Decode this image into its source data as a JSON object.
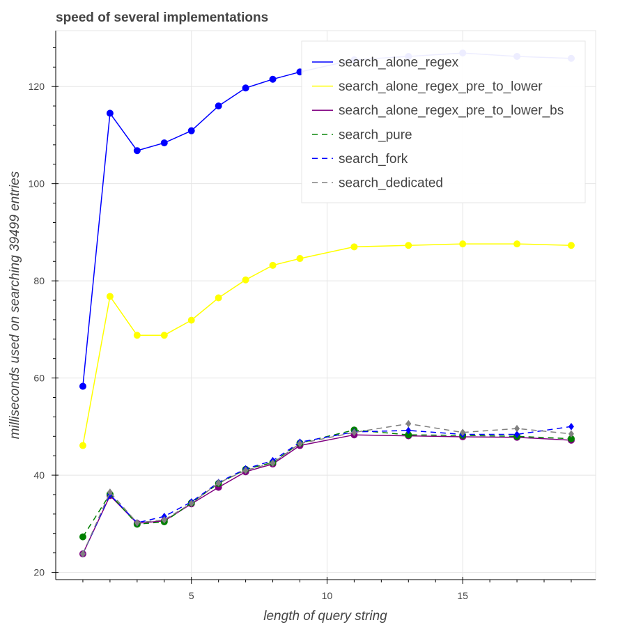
{
  "chart_data": {
    "type": "line",
    "title": "speed of several implementations",
    "xlabel": "length of query string",
    "ylabel": "milliseconds used on searching 39499 entries",
    "xlim": [
      0,
      19.9
    ],
    "ylim": [
      18.5,
      131.5
    ],
    "xticks": [
      5,
      10,
      15
    ],
    "yticks": [
      20,
      40,
      60,
      80,
      100,
      120
    ],
    "grid": true,
    "legend_position": "top-right",
    "series": [
      {
        "name": "search_alone_regex",
        "color": "#0000ff",
        "dash": false,
        "marker": "circle",
        "x": [
          1,
          2,
          3,
          4,
          5,
          6,
          7,
          8,
          9,
          11,
          13,
          15,
          17,
          19
        ],
        "y": [
          58.3,
          114.5,
          106.8,
          108.4,
          110.9,
          116,
          119.7,
          121.5,
          123,
          125.5,
          126.2,
          126.9,
          126.2,
          125.8
        ]
      },
      {
        "name": "search_alone_regex_pre_to_lower",
        "color": "#ffff00",
        "dash": false,
        "marker": "circle",
        "x": [
          1,
          2,
          3,
          4,
          5,
          6,
          7,
          8,
          9,
          11,
          13,
          15,
          17,
          19
        ],
        "y": [
          46.1,
          76.8,
          68.8,
          68.8,
          71.9,
          76.5,
          80.2,
          83.2,
          84.6,
          87,
          87.3,
          87.6,
          87.6,
          87.3
        ]
      },
      {
        "name": "search_alone_regex_pre_to_lower_bs",
        "color": "#800080",
        "dash": false,
        "marker": "circle",
        "x": [
          1,
          2,
          3,
          4,
          5,
          6,
          7,
          8,
          9,
          11,
          13,
          15,
          17,
          19
        ],
        "y": [
          23.8,
          35.8,
          30.1,
          30.6,
          34.1,
          37.5,
          40.7,
          42.3,
          46.1,
          48.3,
          48.1,
          47.9,
          47.8,
          47.2
        ]
      },
      {
        "name": "search_pure",
        "color": "#008000",
        "dash": true,
        "marker": "circle",
        "x": [
          1,
          2,
          3,
          4,
          5,
          6,
          7,
          8,
          9,
          11,
          13,
          15,
          17,
          19
        ],
        "y": [
          27.3,
          36.1,
          29.9,
          30.4,
          34.3,
          38.3,
          41.2,
          42.6,
          46.6,
          49.3,
          48.3,
          48.2,
          48,
          47.5
        ]
      },
      {
        "name": "search_fork",
        "color": "#0000ff",
        "dash": true,
        "marker": "diamond",
        "x": [
          1,
          2,
          3,
          4,
          5,
          6,
          7,
          8,
          9,
          11,
          13,
          15,
          17,
          19
        ],
        "y": [
          23.8,
          36,
          30.2,
          31.5,
          34.5,
          38.5,
          41.3,
          43,
          46.8,
          48.9,
          49.2,
          48.4,
          48.4,
          50
        ]
      },
      {
        "name": "search_dedicated",
        "color": "#808080",
        "dash": true,
        "marker": "diamond",
        "x": [
          1,
          2,
          3,
          4,
          5,
          6,
          7,
          8,
          9,
          11,
          13,
          15,
          17,
          19
        ],
        "y": [
          23.8,
          36.5,
          30.2,
          30.8,
          34.2,
          38.4,
          41,
          42.5,
          46.5,
          48.8,
          50.6,
          48.8,
          49.6,
          48.5
        ]
      }
    ]
  }
}
